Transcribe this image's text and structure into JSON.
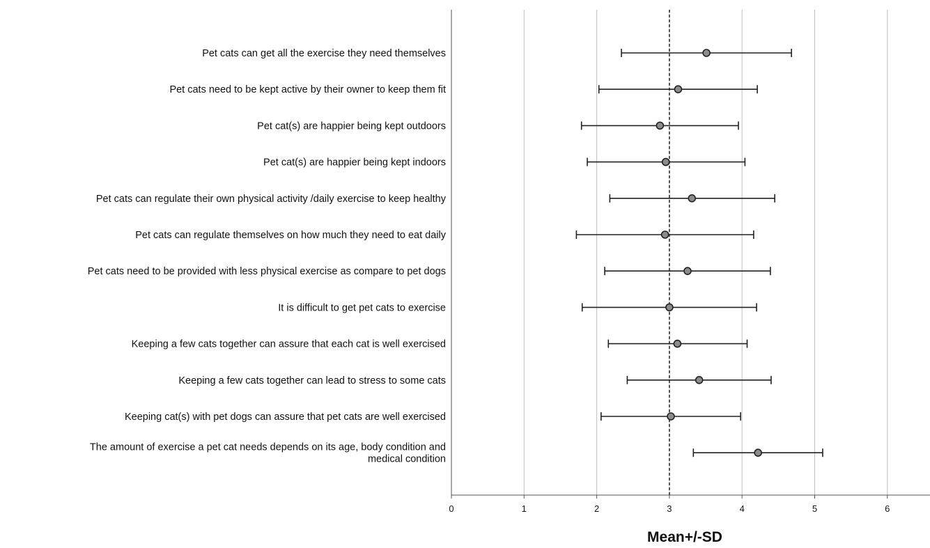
{
  "chart_data": {
    "type": "errorbar",
    "title": "",
    "xlabel": "Mean+/-SD",
    "ylabel": "",
    "xlim": [
      0,
      6.6
    ],
    "xticks": [
      "0",
      "1",
      "2",
      "3",
      "4",
      "5",
      "6"
    ],
    "reference_line": 3,
    "grid": "vertical",
    "colors": {
      "grid": "#bdbdbd",
      "axis": "#555555",
      "marker_fill": "#8c8c8c",
      "line": "#222222"
    },
    "categories": [
      [
        "Pet cats can get all the exercise they need themselves"
      ],
      [
        "Pet cats need to be kept active by their owner to keep them fit"
      ],
      [
        "Pet cat(s) are happier being kept outdoors"
      ],
      [
        "Pet cat(s) are happier being kept indoors"
      ],
      [
        "Pet cats can regulate their own physical activity /daily exercise to keep healthy"
      ],
      [
        "Pet cats can regulate themselves on how much they need to eat daily"
      ],
      [
        "Pet cats need to be provided with less physical exercise as compare to pet dogs"
      ],
      [
        "It is difficult to get pet cats to exercise"
      ],
      [
        "Keeping a few cats together can assure that each cat is well exercised"
      ],
      [
        "Keeping a few cats together can lead to stress to some cats"
      ],
      [
        "Keeping cat(s) with pet dogs can assure that pet cats are well exercised"
      ],
      [
        "The amount of exercise a pet cat needs depends on its age, body condition and",
        "medical condition"
      ]
    ],
    "mean": [
      3.51,
      3.12,
      2.87,
      2.95,
      3.31,
      2.94,
      3.25,
      3.0,
      3.11,
      3.41,
      3.02,
      4.22
    ],
    "lower": [
      2.34,
      2.03,
      1.79,
      1.87,
      2.18,
      1.72,
      2.11,
      1.8,
      2.16,
      2.42,
      2.06,
      3.33
    ],
    "upper": [
      4.68,
      4.21,
      3.95,
      4.04,
      4.45,
      4.16,
      4.39,
      4.2,
      4.07,
      4.4,
      3.98,
      5.11
    ]
  }
}
